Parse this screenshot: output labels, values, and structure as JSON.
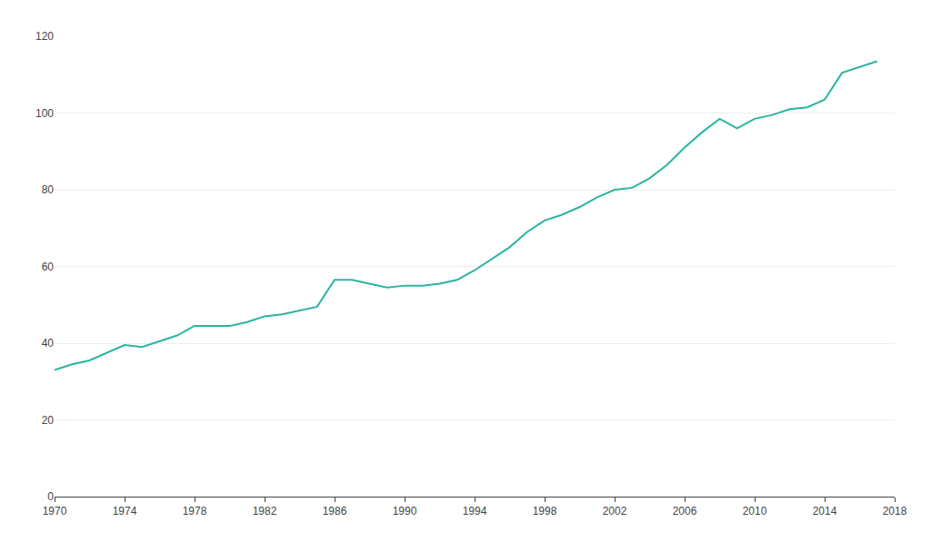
{
  "chart_data": {
    "type": "line",
    "x": [
      1970,
      1971,
      1972,
      1973,
      1974,
      1975,
      1976,
      1977,
      1978,
      1979,
      1980,
      1981,
      1982,
      1983,
      1984,
      1985,
      1986,
      1987,
      1988,
      1989,
      1990,
      1991,
      1992,
      1993,
      1994,
      1995,
      1996,
      1997,
      1998,
      1999,
      2000,
      2001,
      2002,
      2003,
      2004,
      2005,
      2006,
      2007,
      2008,
      2009,
      2010,
      2011,
      2012,
      2013,
      2014,
      2015,
      2016,
      2017
    ],
    "values": [
      33.0,
      34.5,
      35.5,
      37.5,
      39.5,
      39.0,
      40.5,
      42.0,
      44.5,
      44.5,
      44.5,
      45.5,
      47.0,
      47.5,
      48.5,
      49.5,
      56.5,
      56.5,
      55.5,
      54.5,
      55.0,
      55.0,
      55.5,
      56.5,
      59.0,
      62.0,
      65.0,
      69.0,
      72.0,
      73.5,
      75.5,
      78.0,
      80.0,
      80.5,
      83.0,
      86.5,
      91.0,
      95.0,
      98.5,
      96.0,
      98.5,
      99.5,
      101.0,
      101.5,
      103.5,
      110.5,
      112.0,
      113.5
    ],
    "color": "#2ab5a0",
    "xlim": [
      1970,
      2018
    ],
    "ylim": [
      0,
      120
    ],
    "xticks": [
      1970,
      1974,
      1978,
      1982,
      1986,
      1990,
      1994,
      1998,
      2002,
      2006,
      2010,
      2014,
      2018
    ],
    "yticks": [
      0,
      20,
      40,
      60,
      80,
      100,
      120
    ],
    "grid": true
  }
}
